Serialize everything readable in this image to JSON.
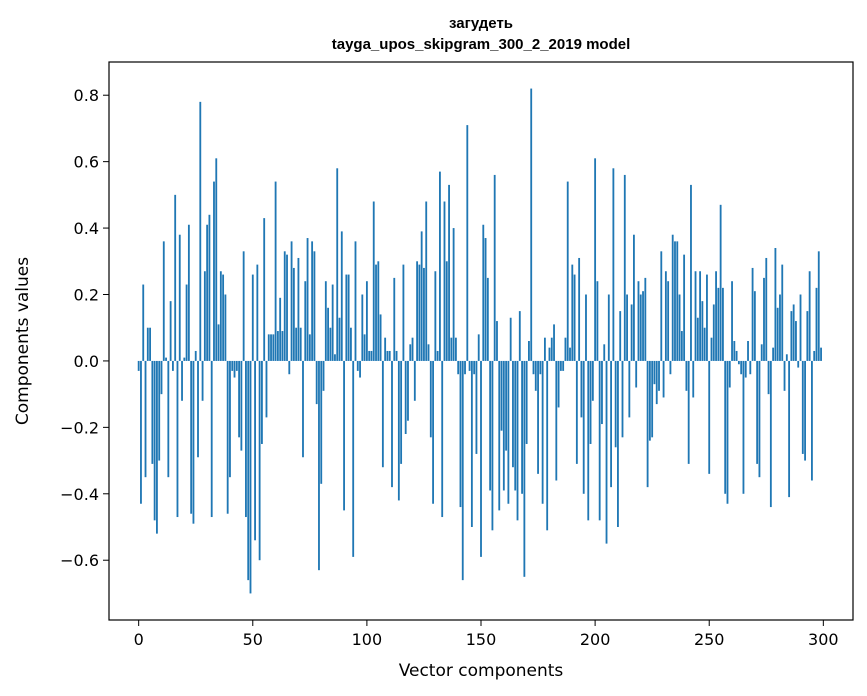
{
  "chart_data": {
    "type": "bar",
    "title": "загудеть",
    "subtitle": "tayga_upos_skipgram_300_2_2019 model",
    "xlabel": "Vector components",
    "ylabel": "Components values",
    "xlim": [
      -13,
      313
    ],
    "ylim": [
      -0.78,
      0.9
    ],
    "xticks": [
      0,
      50,
      100,
      150,
      200,
      250,
      300
    ],
    "xtick_labels": [
      "0",
      "50",
      "100",
      "150",
      "200",
      "250",
      "300"
    ],
    "yticks": [
      -0.6,
      -0.4,
      -0.2,
      0.0,
      0.2,
      0.4,
      0.6,
      0.8
    ],
    "ytick_labels": [
      "−0.6",
      "−0.4",
      "−0.2",
      "0.0",
      "0.2",
      "0.4",
      "0.6",
      "0.8"
    ],
    "grid": false,
    "bar_color": "#1f77b4",
    "x": "0..299",
    "values": [
      -0.03,
      -0.43,
      0.23,
      -0.35,
      0.1,
      0.1,
      -0.31,
      -0.48,
      -0.52,
      -0.3,
      -0.1,
      0.36,
      0.01,
      -0.35,
      0.18,
      -0.03,
      0.5,
      -0.47,
      0.38,
      -0.12,
      0.01,
      0.23,
      0.41,
      -0.46,
      -0.49,
      0.03,
      -0.29,
      0.78,
      -0.12,
      0.27,
      0.41,
      0.44,
      -0.47,
      0.54,
      0.61,
      0.11,
      0.27,
      0.26,
      0.2,
      -0.46,
      -0.35,
      -0.03,
      -0.05,
      -0.03,
      -0.23,
      -0.27,
      0.33,
      -0.47,
      -0.66,
      -0.7,
      0.26,
      -0.54,
      0.29,
      -0.6,
      -0.25,
      0.43,
      -0.17,
      0.08,
      0.08,
      0.08,
      0.54,
      0.09,
      0.19,
      0.09,
      0.33,
      0.32,
      -0.04,
      0.36,
      0.28,
      0.1,
      0.31,
      0.1,
      -0.29,
      0.24,
      0.37,
      0.08,
      0.36,
      0.33,
      -0.13,
      -0.63,
      -0.37,
      -0.09,
      0.24,
      0.16,
      0.1,
      0.23,
      0.02,
      0.58,
      0.13,
      0.39,
      -0.45,
      0.26,
      0.26,
      0.1,
      -0.59,
      0.36,
      -0.03,
      -0.05,
      0.2,
      0.08,
      0.24,
      0.03,
      0.03,
      0.48,
      0.29,
      0.3,
      0.14,
      -0.32,
      0.07,
      0.03,
      0.03,
      -0.38,
      0.25,
      0.03,
      -0.42,
      -0.31,
      0.29,
      -0.22,
      -0.18,
      0.05,
      0.07,
      -0.12,
      0.3,
      0.29,
      0.39,
      0.28,
      0.48,
      0.05,
      -0.23,
      -0.43,
      0.27,
      0.03,
      0.57,
      -0.47,
      0.48,
      0.3,
      0.53,
      0.07,
      0.4,
      0.07,
      -0.04,
      -0.44,
      -0.66,
      -0.04,
      0.71,
      -0.03,
      -0.5,
      -0.04,
      -0.28,
      0.08,
      -0.59,
      0.41,
      0.37,
      0.25,
      -0.39,
      -0.51,
      0.56,
      0.12,
      -0.45,
      -0.21,
      -0.39,
      -0.27,
      -0.43,
      0.13,
      -0.32,
      -0.39,
      -0.48,
      0.15,
      -0.4,
      -0.65,
      -0.25,
      0.06,
      0.82,
      -0.04,
      -0.09,
      -0.34,
      -0.04,
      -0.43,
      0.07,
      -0.51,
      0.04,
      0.07,
      0.11,
      -0.36,
      -0.14,
      -0.03,
      -0.03,
      0.07,
      0.54,
      0.04,
      0.29,
      0.26,
      -0.31,
      0.31,
      -0.17,
      -0.4,
      0.2,
      -0.48,
      -0.25,
      -0.12,
      0.61,
      0.24,
      -0.48,
      -0.19,
      0.05,
      -0.55,
      0.2,
      -0.38,
      0.58,
      -0.26,
      -0.5,
      0.15,
      -0.23,
      0.56,
      0.2,
      -0.17,
      0.17,
      0.38,
      -0.08,
      0.24,
      0.2,
      0.21,
      0.25,
      -0.38,
      -0.24,
      -0.23,
      -0.07,
      -0.13,
      -0.09,
      0.33,
      -0.11,
      0.27,
      0.24,
      -0.04,
      0.38,
      0.36,
      0.36,
      0.2,
      0.09,
      0.32,
      -0.09,
      -0.31,
      0.53,
      -0.11,
      0.27,
      0.13,
      0.27,
      0.18,
      0.1,
      0.26,
      -0.34,
      0.07,
      0.17,
      0.27,
      0.22,
      0.47,
      0.22,
      -0.4,
      -0.43,
      -0.08,
      0.24,
      0.06,
      0.03,
      -0.01,
      -0.04,
      -0.4,
      -0.05,
      0.06,
      -0.04,
      0.28,
      0.21,
      -0.31,
      -0.35,
      0.05,
      0.25,
      0.31,
      -0.1,
      -0.44,
      0.04,
      0.34,
      0.16,
      0.2,
      0.29,
      -0.09,
      0.02,
      -0.41,
      0.15,
      0.17,
      0.12,
      -0.02,
      0.2,
      -0.28,
      -0.3,
      0.15,
      0.27,
      -0.36,
      0.03,
      0.22,
      0.33,
      0.04
    ]
  }
}
